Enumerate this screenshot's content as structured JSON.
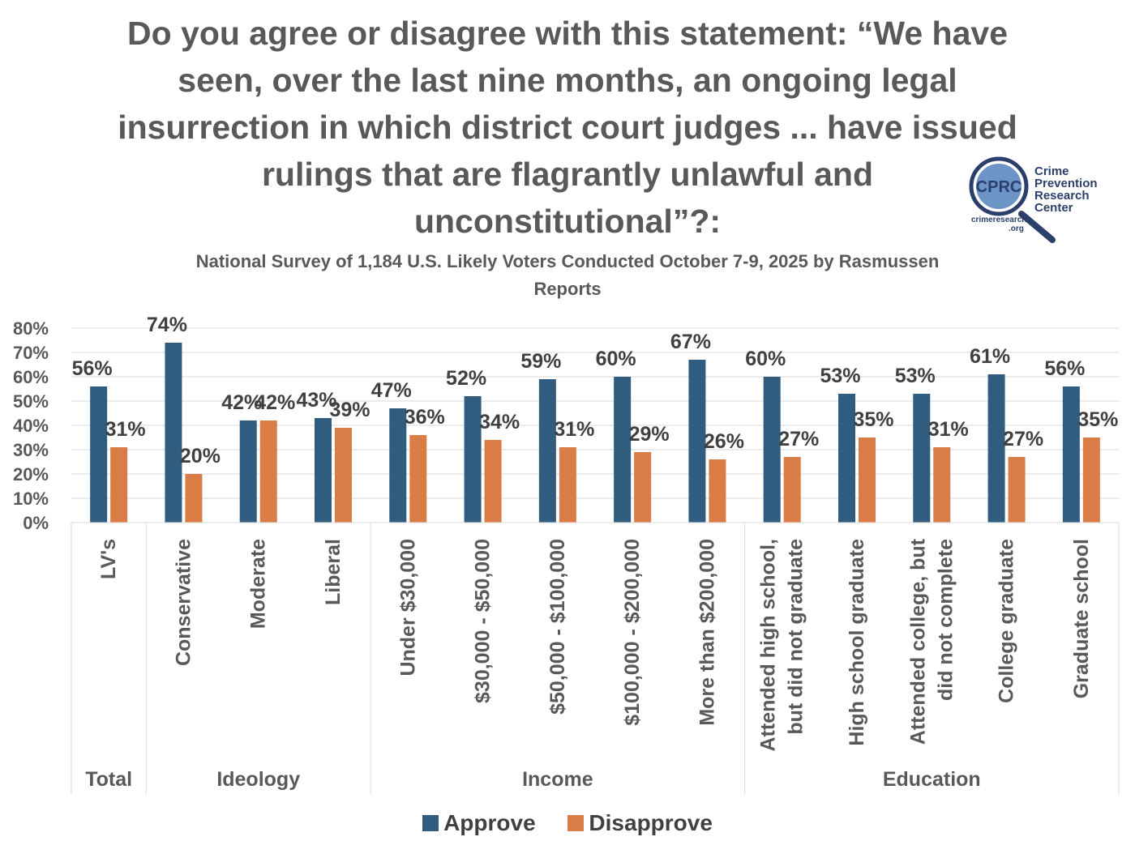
{
  "title_lines": [
    "Do you agree or disagree with this statement: “We have",
    "seen, over the last nine months, an ongoing legal",
    "insurrection in which district court judges ... have issued",
    "rulings that are flagrantly unlawful and",
    "unconstitutional”?:"
  ],
  "subtitle_lines": [
    "National Survey of 1,184 U.S. Likely Voters Conducted October 7-9, 2025 by Rasmussen",
    "Reports"
  ],
  "logo": {
    "abbr": "CPRC",
    "name_lines": [
      "Crime",
      "Prevention",
      "Research",
      "Center"
    ],
    "url_lines": [
      "crimeresearch",
      ".org"
    ]
  },
  "colors": {
    "approve": "#2f5c7f",
    "disapprove": "#d97c45",
    "grid": "#d9d9d9",
    "text": "#595959"
  },
  "chart_data": {
    "type": "bar",
    "title": "Do you agree or disagree with this statement: “We have seen, over the last nine months, an ongoing legal insurrection in which district court judges ... have issued rulings that are flagrantly unlawful and unconstitutional”?:",
    "ylim": [
      0,
      80
    ],
    "yticks": [
      "0%",
      "10%",
      "20%",
      "30%",
      "40%",
      "50%",
      "60%",
      "70%",
      "80%"
    ],
    "grid": true,
    "legend_position": "bottom",
    "categories": [
      "LV's",
      "Conservative",
      "Moderate",
      "Liberal",
      "Under $30,000",
      "$30,000 - $50,000",
      "$50,000 - $100,000",
      "$100,000 - $200,000",
      "More than $200,000",
      "Attended high school, but did not graduate",
      "High school graduate",
      "Attended college, but did not complete",
      "College graduate",
      "Graduate school"
    ],
    "category_lines": [
      [
        "LV's"
      ],
      [
        "Conservative"
      ],
      [
        "Moderate"
      ],
      [
        "Liberal"
      ],
      [
        "Under $30,000"
      ],
      [
        "$30,000 - $50,000"
      ],
      [
        "$50,000 - $100,000"
      ],
      [
        "$100,000 - $200,000"
      ],
      [
        "More than $200,000"
      ],
      [
        "Attended high school,",
        "but did not graduate"
      ],
      [
        "High school graduate"
      ],
      [
        "Attended college, but",
        "did not complete"
      ],
      [
        "College graduate"
      ],
      [
        "Graduate school"
      ]
    ],
    "groups": [
      {
        "name": "Total",
        "count": 1
      },
      {
        "name": "Ideology",
        "count": 3
      },
      {
        "name": "Income",
        "count": 5
      },
      {
        "name": "Education",
        "count": 5
      }
    ],
    "series": [
      {
        "name": "Approve",
        "values": [
          56,
          74,
          42,
          43,
          47,
          52,
          59,
          60,
          67,
          60,
          53,
          53,
          61,
          56
        ],
        "labels": [
          "56%",
          "74%",
          "42%",
          "43%",
          "47%",
          "52%",
          "59%",
          "60%",
          "67%",
          "60%",
          "53%",
          "53%",
          "61%",
          "56%"
        ]
      },
      {
        "name": "Disapprove",
        "values": [
          31,
          20,
          42,
          39,
          36,
          34,
          31,
          29,
          26,
          27,
          35,
          31,
          27,
          35
        ],
        "labels": [
          "31%",
          "20%",
          "42%",
          "39%",
          "36%",
          "34%",
          "31%",
          "29%",
          "26%",
          "27%",
          "35%",
          "31%",
          "27%",
          "35%"
        ]
      }
    ]
  }
}
